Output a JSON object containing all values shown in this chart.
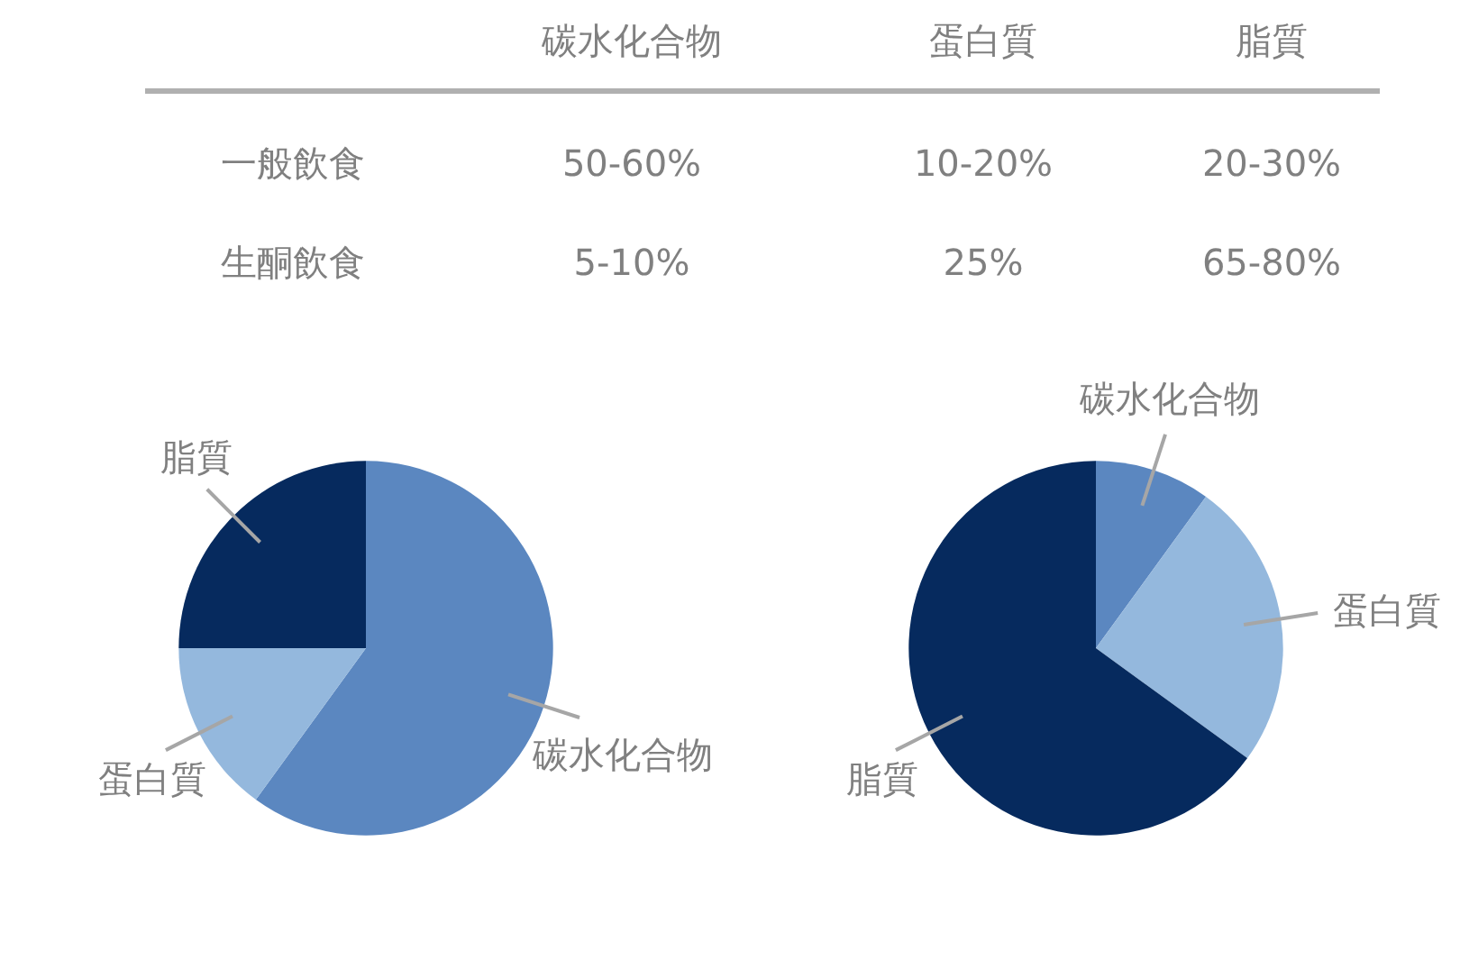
{
  "chart_data": [
    {
      "type": "other",
      "categories": [
        "碳水化合物",
        "蛋白質",
        "脂質"
      ],
      "y_categories": [
        "一般飲食",
        "生酮飲食"
      ],
      "cell_labels": [
        [
          "50-60%",
          "10-20%",
          "20-30%"
        ],
        [
          "5-10%",
          "25%",
          "65-80%"
        ]
      ]
    },
    {
      "type": "pie",
      "categories": [
        "碳水化合物",
        "蛋白質",
        "脂質"
      ],
      "values": [
        60,
        15,
        25
      ],
      "colors": [
        "#5b87c0",
        "#94b8dd",
        "#062a5e"
      ]
    },
    {
      "type": "pie",
      "categories": [
        "碳水化合物",
        "蛋白質",
        "脂質"
      ],
      "values": [
        10,
        25,
        65
      ],
      "colors": [
        "#5b87c0",
        "#94b8dd",
        "#062a5e"
      ]
    }
  ]
}
